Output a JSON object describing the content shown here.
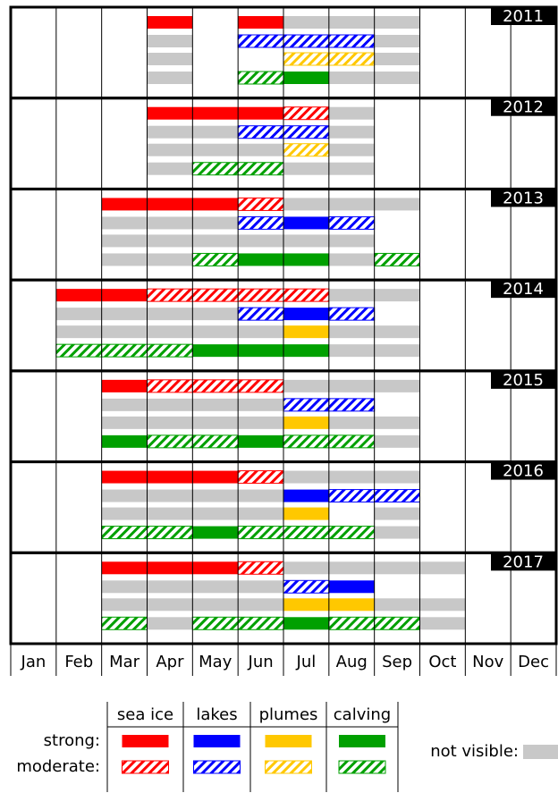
{
  "chart_data": {
    "type": "timeline",
    "categories": [
      "Jan",
      "Feb",
      "Mar",
      "Apr",
      "May",
      "Jun",
      "Jul",
      "Aug",
      "Sep",
      "Oct",
      "Nov",
      "Dec"
    ],
    "series": [
      {
        "name": "sea ice",
        "color": "#ff0000"
      },
      {
        "name": "lakes",
        "color": "#0000ff"
      },
      {
        "name": "plumes",
        "color": "#ffc800"
      },
      {
        "name": "calving",
        "color": "#00a000"
      }
    ],
    "levels": [
      "not visible:",
      "moderate:",
      "strong:"
    ],
    "not_visible_color": "#c8c8c8",
    "panels": [
      {
        "year": "2011",
        "rows": [
          [
            null,
            null,
            null,
            2,
            null,
            2,
            0,
            0,
            0,
            null,
            null,
            null
          ],
          [
            null,
            null,
            null,
            0,
            null,
            1,
            1,
            1,
            0,
            null,
            null,
            null
          ],
          [
            null,
            null,
            null,
            0,
            null,
            null,
            1,
            1,
            0,
            null,
            null,
            null
          ],
          [
            null,
            null,
            null,
            0,
            null,
            1,
            2,
            0,
            0,
            null,
            null,
            null
          ]
        ]
      },
      {
        "year": "2012",
        "rows": [
          [
            null,
            null,
            null,
            2,
            2,
            2,
            1,
            0,
            null,
            null,
            null,
            null
          ],
          [
            null,
            null,
            null,
            0,
            0,
            1,
            1,
            0,
            null,
            null,
            null,
            null
          ],
          [
            null,
            null,
            null,
            0,
            0,
            0,
            1,
            0,
            null,
            null,
            null,
            null
          ],
          [
            null,
            null,
            null,
            0,
            1,
            1,
            0,
            0,
            null,
            null,
            null,
            null
          ]
        ]
      },
      {
        "year": "2013",
        "rows": [
          [
            null,
            null,
            2,
            2,
            2,
            1,
            0,
            0,
            0,
            null,
            null,
            null
          ],
          [
            null,
            null,
            0,
            0,
            0,
            1,
            2,
            1,
            null,
            null,
            null,
            null
          ],
          [
            null,
            null,
            0,
            0,
            0,
            0,
            0,
            0,
            null,
            null,
            null,
            null
          ],
          [
            null,
            null,
            0,
            0,
            1,
            2,
            2,
            0,
            1,
            null,
            null,
            null
          ]
        ]
      },
      {
        "year": "2014",
        "rows": [
          [
            null,
            2,
            2,
            1,
            1,
            1,
            1,
            0,
            0,
            null,
            null,
            null
          ],
          [
            null,
            0,
            0,
            0,
            0,
            1,
            2,
            1,
            null,
            null,
            null,
            null
          ],
          [
            null,
            0,
            0,
            0,
            0,
            0,
            2,
            0,
            0,
            null,
            null,
            null
          ],
          [
            null,
            1,
            1,
            1,
            2,
            2,
            2,
            0,
            0,
            null,
            null,
            null
          ]
        ]
      },
      {
        "year": "2015",
        "rows": [
          [
            null,
            null,
            2,
            1,
            1,
            1,
            0,
            0,
            0,
            null,
            null,
            null
          ],
          [
            null,
            null,
            0,
            0,
            0,
            0,
            1,
            1,
            null,
            null,
            null,
            null
          ],
          [
            null,
            null,
            0,
            0,
            0,
            0,
            2,
            0,
            0,
            null,
            null,
            null
          ],
          [
            null,
            null,
            2,
            1,
            1,
            2,
            1,
            1,
            0,
            null,
            null,
            null
          ]
        ]
      },
      {
        "year": "2016",
        "rows": [
          [
            null,
            null,
            2,
            2,
            2,
            1,
            0,
            0,
            0,
            null,
            null,
            null
          ],
          [
            null,
            null,
            0,
            0,
            0,
            0,
            2,
            1,
            1,
            null,
            null,
            null
          ],
          [
            null,
            null,
            0,
            0,
            0,
            0,
            2,
            null,
            0,
            null,
            null,
            null
          ],
          [
            null,
            null,
            1,
            1,
            2,
            1,
            1,
            1,
            0,
            null,
            null,
            null
          ]
        ]
      },
      {
        "year": "2017",
        "rows": [
          [
            null,
            null,
            2,
            2,
            2,
            1,
            0,
            0,
            0,
            0,
            null,
            null
          ],
          [
            null,
            null,
            0,
            0,
            0,
            0,
            1,
            2,
            null,
            null,
            null,
            null
          ],
          [
            null,
            null,
            0,
            0,
            0,
            0,
            2,
            2,
            0,
            0,
            null,
            null
          ],
          [
            null,
            null,
            1,
            0,
            1,
            1,
            2,
            1,
            1,
            0,
            null,
            null
          ]
        ]
      }
    ]
  }
}
